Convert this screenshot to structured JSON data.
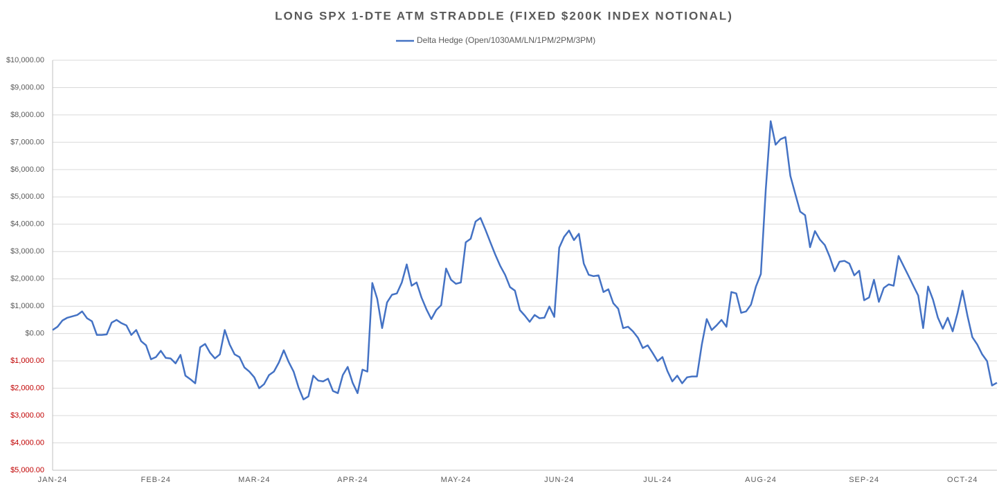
{
  "chart_data": {
    "type": "line",
    "title": "LONG SPX 1-DTE ATM STRADDLE (FIXED $200K INDEX NOTIONAL)",
    "categories": [
      "JAN-24",
      null,
      null,
      null,
      null,
      null,
      null,
      null,
      null,
      null,
      null,
      null,
      null,
      null,
      null,
      null,
      null,
      null,
      null,
      null,
      null,
      "FEB-24",
      null,
      null,
      null,
      null,
      null,
      null,
      null,
      null,
      null,
      null,
      null,
      null,
      null,
      null,
      null,
      null,
      null,
      null,
      null,
      "MAR-24",
      null,
      null,
      null,
      null,
      null,
      null,
      null,
      null,
      null,
      null,
      null,
      null,
      null,
      null,
      null,
      null,
      null,
      null,
      null,
      "APR-24",
      null,
      null,
      null,
      null,
      null,
      null,
      null,
      null,
      null,
      null,
      null,
      null,
      null,
      null,
      null,
      null,
      null,
      null,
      null,
      null,
      "MAY-24",
      null,
      null,
      null,
      null,
      null,
      null,
      null,
      null,
      null,
      null,
      null,
      null,
      null,
      null,
      null,
      null,
      null,
      null,
      null,
      null,
      "JUN-24",
      null,
      null,
      null,
      null,
      null,
      null,
      null,
      null,
      null,
      null,
      null,
      null,
      null,
      null,
      null,
      null,
      null,
      null,
      null,
      "JUL-24",
      null,
      null,
      null,
      null,
      null,
      null,
      null,
      null,
      null,
      null,
      null,
      null,
      null,
      null,
      null,
      null,
      null,
      null,
      null,
      null,
      "AUG-24",
      null,
      null,
      null,
      null,
      null,
      null,
      null,
      null,
      null,
      null,
      null,
      null,
      null,
      null,
      null,
      null,
      null,
      null,
      null,
      null,
      "SEP-24",
      null,
      null,
      null,
      null,
      null,
      null,
      null,
      null,
      null,
      null,
      null,
      null,
      null,
      null,
      null,
      null,
      null,
      null,
      null,
      "OCT-24",
      null,
      null,
      null,
      null,
      null,
      null,
      null
    ],
    "series": [
      {
        "name": "Delta Hedge (Open/1030AM/LN/1PM/2PM/3PM)",
        "color": "#4472c4",
        "values": [
          130,
          250,
          480,
          580,
          630,
          680,
          810,
          560,
          450,
          -50,
          -50,
          -30,
          400,
          500,
          380,
          300,
          -50,
          130,
          -280,
          -430,
          -940,
          -860,
          -630,
          -890,
          -910,
          -1090,
          -780,
          -1540,
          -1670,
          -1820,
          -500,
          -380,
          -700,
          -910,
          -760,
          130,
          -400,
          -760,
          -860,
          -1240,
          -1390,
          -1600,
          -2000,
          -1850,
          -1520,
          -1390,
          -1060,
          -610,
          -1040,
          -1390,
          -1970,
          -2410,
          -2300,
          -1540,
          -1720,
          -1750,
          -1650,
          -2100,
          -2180,
          -1520,
          -1220,
          -1800,
          -2180,
          -1320,
          -1390,
          1850,
          1270,
          200,
          1140,
          1420,
          1470,
          1870,
          2530,
          1750,
          1870,
          1320,
          890,
          530,
          860,
          1040,
          2380,
          1970,
          1820,
          1870,
          3340,
          3470,
          4100,
          4230,
          3800,
          3340,
          2890,
          2480,
          2150,
          1700,
          1570,
          860,
          660,
          430,
          680,
          560,
          580,
          990,
          610,
          3140,
          3540,
          3770,
          3420,
          3650,
          2560,
          2150,
          2100,
          2130,
          1520,
          1620,
          1110,
          910,
          200,
          250,
          80,
          -150,
          -530,
          -430,
          -710,
          -1010,
          -860,
          -1370,
          -1750,
          -1540,
          -1820,
          -1600,
          -1570,
          -1570,
          -400,
          530,
          130,
          300,
          500,
          250,
          1520,
          1470,
          760,
          810,
          1060,
          1720,
          2180,
          5270,
          7770,
          6910,
          7110,
          7190,
          5770,
          5110,
          4460,
          4330,
          3160,
          3750,
          3440,
          3240,
          2810,
          2280,
          2630,
          2660,
          2560,
          2130,
          2300,
          1220,
          1320,
          1970,
          1160,
          1670,
          1800,
          1750,
          2840,
          2480,
          2120,
          1750,
          1390,
          200,
          1720,
          1240,
          580,
          180,
          580,
          80,
          760,
          1570,
          660,
          -130,
          -400,
          -760,
          -1010,
          -1900,
          -1800
        ]
      }
    ],
    "ylim": [
      -5000,
      10000
    ],
    "yticks": [
      {
        "value": -5000,
        "label": "$5,000.00"
      },
      {
        "value": -4000,
        "label": "$4,000.00"
      },
      {
        "value": -3000,
        "label": "$3,000.00"
      },
      {
        "value": -2000,
        "label": "$2,000.00"
      },
      {
        "value": -1000,
        "label": "$1,000.00"
      },
      {
        "value": 0,
        "label": "$0.00"
      },
      {
        "value": 1000,
        "label": "$1,000.00"
      },
      {
        "value": 2000,
        "label": "$2,000.00"
      },
      {
        "value": 3000,
        "label": "$3,000.00"
      },
      {
        "value": 4000,
        "label": "$4,000.00"
      },
      {
        "value": 5000,
        "label": "$5,000.00"
      },
      {
        "value": 6000,
        "label": "$6,000.00"
      },
      {
        "value": 7000,
        "label": "$7,000.00"
      },
      {
        "value": 8000,
        "label": "$8,000.00"
      },
      {
        "value": 9000,
        "label": "$9,000.00"
      },
      {
        "value": 10000,
        "label": "$10,000.00"
      }
    ],
    "negative_tick_color": "#c00000",
    "grid": true,
    "legend": "top"
  }
}
